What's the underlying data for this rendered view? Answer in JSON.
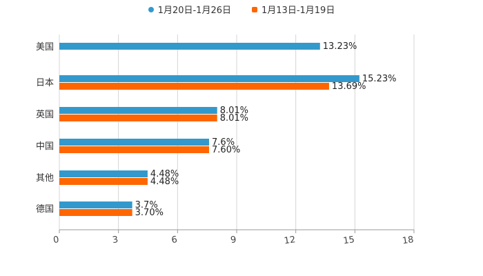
{
  "chart_data": {
    "type": "bar",
    "orientation": "horizontal",
    "categories": [
      "美国",
      "日本",
      "英国",
      "中国",
      "其他",
      "德国"
    ],
    "series": [
      {
        "name": "1月20日-1月26日",
        "color": "#3399cc",
        "values": [
          13.23,
          15.23,
          8.01,
          7.6,
          4.48,
          3.7
        ],
        "labels": [
          "13.23%",
          "15.23%",
          "8.01%",
          "7.6%",
          "4.48%",
          "3.7%"
        ]
      },
      {
        "name": "1月13日-1月19日",
        "color": "#ff6600",
        "values": [
          null,
          13.69,
          8.01,
          7.6,
          4.48,
          3.7
        ],
        "labels": [
          null,
          "13.69%",
          "8.01%",
          "7.60%",
          "4.48%",
          "3.70%"
        ]
      }
    ],
    "xlim": [
      0,
      18
    ],
    "xticks": [
      "0",
      "3",
      "6",
      "9",
      "12",
      "15",
      "18"
    ],
    "grid": true,
    "legend_position": "top"
  }
}
